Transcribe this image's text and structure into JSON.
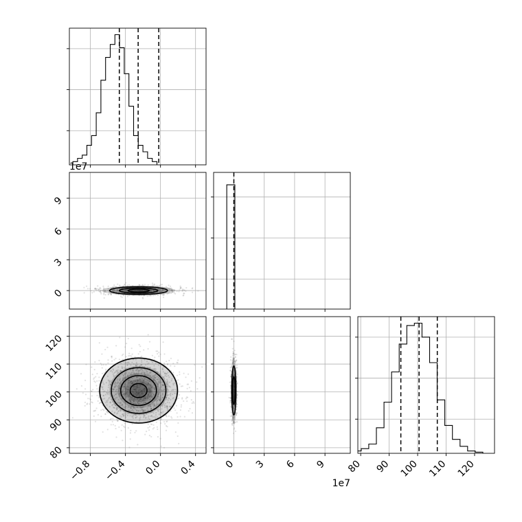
{
  "chart_data": [
    {
      "type": "bar",
      "panel": "hist-param1",
      "bin_start": -1.0,
      "bin_width": 0.0533,
      "counts": [
        1,
        2,
        3,
        6,
        9,
        16,
        26,
        33,
        37,
        40,
        36,
        28,
        18,
        9,
        6,
        4,
        2,
        1
      ],
      "quantiles": [
        -0.47,
        -0.255,
        -0.02
      ],
      "xlim": [
        -1.04,
        0.52
      ],
      "grid": true
    },
    {
      "type": "bar",
      "panel": "hist-param2",
      "bin_start": -0.7,
      "bin_width": 0.8,
      "counts": [
        1.0
      ],
      "quantiles": [
        0.0
      ],
      "xlim": [
        -2.0,
        11.5
      ],
      "x_multiplier_label": "1e7",
      "xticks": [
        "0",
        "3",
        "6",
        "9"
      ],
      "grid": true
    },
    {
      "type": "bar",
      "panel": "hist-param3",
      "bin_start": 77.5,
      "bin_width": 2.67,
      "counts": [
        1,
        2,
        4,
        11,
        22,
        35,
        47,
        55,
        56,
        50,
        39,
        23,
        12,
        6,
        3,
        1,
        0.5
      ],
      "quantiles": [
        94.1,
        100.5,
        106.9
      ],
      "xlim": [
        79,
        127
      ],
      "xticks": [
        "80",
        "90",
        "100",
        "110",
        "120"
      ],
      "grid": true
    },
    {
      "type": "scatter",
      "panel": "joint-param1-param2",
      "center": [
        -0.25,
        0.0
      ],
      "spread": [
        0.22,
        0.25
      ],
      "xlim": [
        -1.04,
        0.52
      ],
      "ylim": [
        -1.8,
        11.5
      ],
      "y_multiplier_label": "1e7",
      "yticks": [
        "0",
        "3",
        "6",
        "9"
      ],
      "grid": true
    },
    {
      "type": "scatter",
      "panel": "joint-param1-param3",
      "center": [
        -0.25,
        100.5
      ],
      "spread": [
        0.24,
        6.3
      ],
      "xlim": [
        -1.04,
        0.52
      ],
      "ylim": [
        78,
        127
      ],
      "xticks": [
        "−0.8",
        "−0.4",
        "0.0",
        "0.4"
      ],
      "yticks": [
        "80",
        "90",
        "100",
        "110",
        "120"
      ],
      "grid": true
    },
    {
      "type": "scatter",
      "panel": "joint-param2-param3",
      "center": [
        0.0,
        100.5
      ],
      "spread": [
        0.15,
        6.3
      ],
      "xlim": [
        -2.0,
        11.5
      ],
      "ylim": [
        78,
        127
      ],
      "grid": true
    }
  ],
  "style": {
    "axis_color": "#000000",
    "grid_color": "#b0b0b0",
    "point_color": "#888888",
    "density_color": "#000000"
  }
}
